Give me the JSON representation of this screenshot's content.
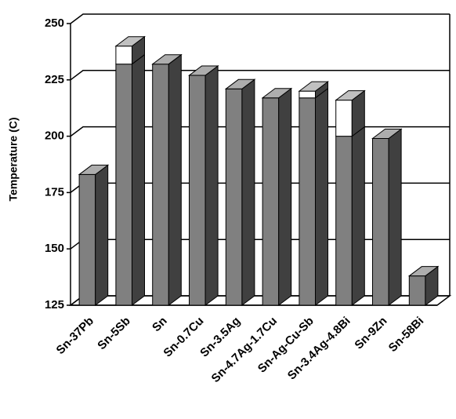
{
  "chart_data": {
    "type": "bar3d-stacked",
    "ylabel": "Temperature (C)",
    "categories": [
      "Sn-37Pb",
      "Sn-5Sb",
      "Sn",
      "Sn-0.7Cu",
      "Sn-3.5Ag",
      "Sn-4.7Ag-1.7Cu",
      "Sn-Ag-Cu-Sb",
      "Sn-3.4Ag-4.8Bi",
      "Sn-9Zn",
      "Sn-58Bi"
    ],
    "series": [
      {
        "color": "#808080",
        "values": [
          183,
          232,
          232,
          227,
          221,
          217,
          217,
          200,
          199,
          138
        ]
      },
      {
        "color": "#ffffff",
        "values": [
          null,
          8,
          null,
          null,
          null,
          null,
          3,
          16,
          null,
          null
        ]
      }
    ],
    "ylim": [
      125,
      250
    ],
    "yticks": [
      125,
      150,
      175,
      200,
      225,
      250
    ],
    "grid": true
  }
}
